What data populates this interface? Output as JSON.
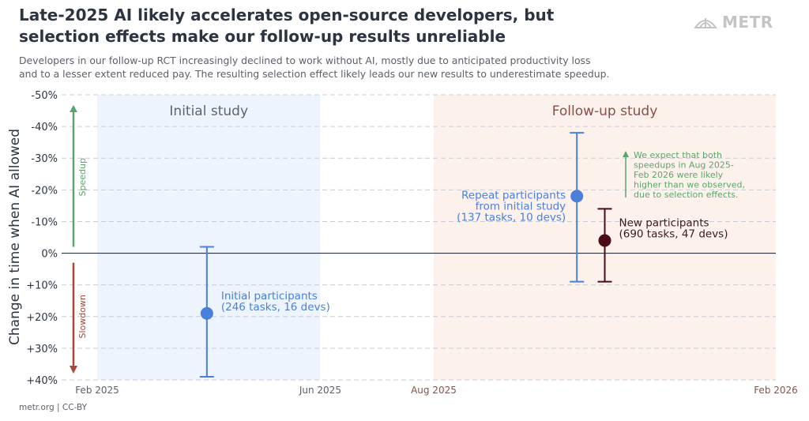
{
  "header": {
    "title_line1": "Late-2025 AI likely accelerates open-source developers, but",
    "title_line2": "selection effects make our follow-up results unreliable",
    "subtitle_line1": "Developers in our follow-up RCT increasingly declined to work without AI, mostly due to anticipated productivity loss",
    "subtitle_line2": "and to a lesser extent reduced pay. The resulting selection effect likely leads our new results to underestimate speedup."
  },
  "logo": {
    "text": "METR"
  },
  "footer": {
    "text": "metr.org  |  CC-BY"
  },
  "colors": {
    "initial_region": "#edf4fd",
    "followup_region": "#fdf1ec",
    "initial_color": "#4a7fdc",
    "new_color": "#4d0b14",
    "speedup": "#5aa66a",
    "slowdown": "#a8473a",
    "note": "#5aa66a"
  },
  "chart_data": {
    "type": "scatter",
    "ylabel": "Change in time when AI allowed",
    "ylim": [
      -50,
      40
    ],
    "y_ticks": [
      -50,
      -40,
      -30,
      -20,
      -10,
      0,
      10,
      20,
      30,
      40
    ],
    "y_tick_labels": [
      "-50%",
      "-40%",
      "-30%",
      "-20%",
      "-10%",
      "0%",
      "+10%",
      "+20%",
      "+30%",
      "+40%"
    ],
    "x_ticks": [
      {
        "date": "2025-02",
        "label": "Feb 2025"
      },
      {
        "date": "2025-06",
        "label": "Jun 2025"
      },
      {
        "date": "2025-08",
        "label": "Aug 2025"
      },
      {
        "date": "2026-02",
        "label": "Feb 2026"
      }
    ],
    "regions": [
      {
        "label": "Initial study",
        "start": "2025-02",
        "end": "2025-06"
      },
      {
        "label": "Follow-up study",
        "start": "2025-08",
        "end": "2026-02"
      }
    ],
    "speedup_label": "Speedup",
    "slowdown_label": "Slowdown",
    "series": [
      {
        "line1": "Initial participants",
        "line2": "(246 tasks, 16 devs)",
        "line3": "",
        "date": "2025-04",
        "value": 19,
        "ci": [
          -2,
          39
        ]
      },
      {
        "line1": "Repeat participants",
        "line2": "from initial study",
        "line3": "(137 tasks, 10 devs)",
        "date": "2025-10-17",
        "value": -18,
        "ci": [
          -38,
          9
        ]
      },
      {
        "line1": "New participants",
        "line2": "(690 tasks, 47 devs)",
        "line3": "",
        "date": "2025-11",
        "value": -4,
        "ci": [
          -14,
          9
        ]
      }
    ],
    "note": [
      "We expect that both",
      "speedups in Aug 2025-",
      "Feb 2026 were likely",
      "higher than we observed,",
      "due to selection effects."
    ]
  }
}
